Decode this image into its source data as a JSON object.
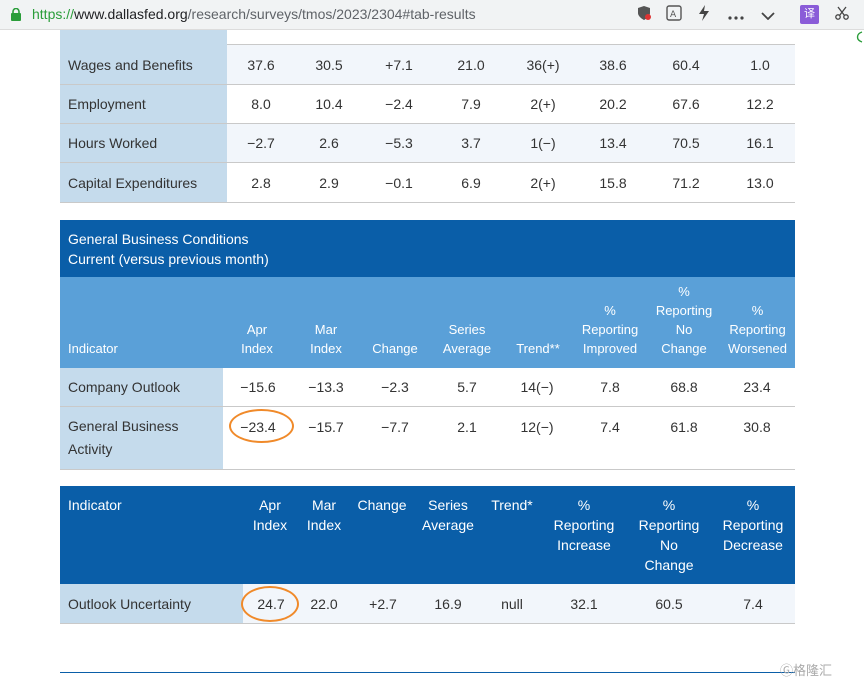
{
  "browser": {
    "url_scheme": "https://",
    "url_host": "www.dallasfed.org",
    "url_path": "/research/surveys/tmos/2023/2304#tab-results",
    "ext_label": "译"
  },
  "table1": {
    "rows": [
      {
        "label": "Wages and Benefits",
        "values": [
          "37.6",
          "30.5",
          "+7.1",
          "21.0",
          "36(+)",
          "38.6",
          "60.4",
          "1.0"
        ]
      },
      {
        "label": "Employment",
        "values": [
          "8.0",
          "10.4",
          "−2.4",
          "7.9",
          "2(+)",
          "20.2",
          "67.6",
          "12.2"
        ]
      },
      {
        "label": "Hours Worked",
        "values": [
          "−2.7",
          "2.6",
          "−5.3",
          "3.7",
          "1(−)",
          "13.4",
          "70.5",
          "16.1"
        ]
      },
      {
        "label": "Capital Expenditures",
        "values": [
          "2.8",
          "2.9",
          "−0.1",
          "6.9",
          "2(+)",
          "15.8",
          "71.2",
          "13.0"
        ]
      }
    ]
  },
  "table2": {
    "title_line1": "General Business Conditions",
    "title_line2": "Current (versus previous month)",
    "headers": {
      "indicator": "Indicator",
      "apr_1": "Apr",
      "apr_2": "Index",
      "mar_1": "Mar",
      "mar_2": "Index",
      "change": "Change",
      "series_1": "Series",
      "series_2": "Average",
      "trend": "Trend**",
      "improved_1": "%",
      "improved_2": "Reporting",
      "improved_3": "Improved",
      "nochange_1": "%",
      "nochange_2": "Reporting",
      "nochange_3": "No",
      "nochange_4": "Change",
      "worsened_1": "%",
      "worsened_2": "Reporting",
      "worsened_3": "Worsened"
    },
    "rows": [
      {
        "label": "Company Outlook",
        "values": [
          "−15.6",
          "−13.3",
          "−2.3",
          "5.7",
          "14(−)",
          "7.8",
          "68.8",
          "23.4"
        ]
      },
      {
        "label_1": "General Business",
        "label_2": "Activity",
        "values": [
          "−23.4",
          "−15.7",
          "−7.7",
          "2.1",
          "12(−)",
          "7.4",
          "61.8",
          "30.8"
        ]
      }
    ]
  },
  "table3": {
    "headers": {
      "indicator": "Indicator",
      "apr_1": "Apr",
      "apr_2": "Index",
      "mar_1": "Mar",
      "mar_2": "Index",
      "change": "Change",
      "series_1": "Series",
      "series_2": "Average",
      "trend": "Trend*",
      "inc_1": "%",
      "inc_2": "Reporting",
      "inc_3": "Increase",
      "nc_1": "%",
      "nc_2": "Reporting",
      "nc_3": "No",
      "nc_4": "Change",
      "dec_1": "%",
      "dec_2": "Reporting",
      "dec_3": "Decrease"
    },
    "row": {
      "label": "Outlook Uncertainty",
      "values": [
        "24.7",
        "22.0",
        "+2.7",
        "16.9",
        "null",
        "32.1",
        "60.5",
        "7.4"
      ]
    }
  },
  "watermark": "格隆汇",
  "colors": {
    "header_dark": "#0a5ea8",
    "header_light": "#5aa0d8",
    "label_bg": "#c5dbec",
    "highlight": "#f08a2a"
  }
}
